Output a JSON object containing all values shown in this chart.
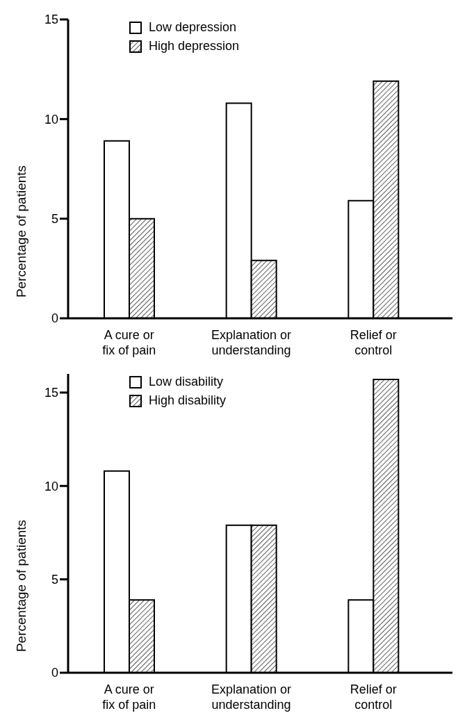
{
  "chart_data": [
    {
      "type": "bar",
      "ylabel": "Percentage of patients",
      "categories": [
        "A cure or fix of pain",
        "Explanation or understanding",
        "Relief or control"
      ],
      "series": [
        {
          "name": "Low depression",
          "color": "#ffffff",
          "values": [
            8.9,
            10.8,
            5.9
          ]
        },
        {
          "name": "High depression",
          "color": "#000000",
          "values": [
            5.0,
            2.9,
            11.9
          ]
        }
      ],
      "ylim": [
        0,
        15
      ],
      "yticks": [
        0,
        5,
        10,
        15
      ],
      "grid": false,
      "legend": "top left"
    },
    {
      "type": "bar",
      "ylabel": "Percentage of patients",
      "categories": [
        "A cure or fix of pain",
        "Explanation or understanding",
        "Relief or control"
      ],
      "series": [
        {
          "name": "Low disability",
          "color": "#ffffff",
          "values": [
            10.8,
            7.9,
            3.9
          ]
        },
        {
          "name": "High disability",
          "color": "#000000",
          "values": [
            3.9,
            7.9,
            15.7
          ]
        }
      ],
      "ylim": [
        0,
        16
      ],
      "yticks": [
        0,
        5,
        10,
        15
      ],
      "grid": false,
      "legend": "top left"
    }
  ]
}
